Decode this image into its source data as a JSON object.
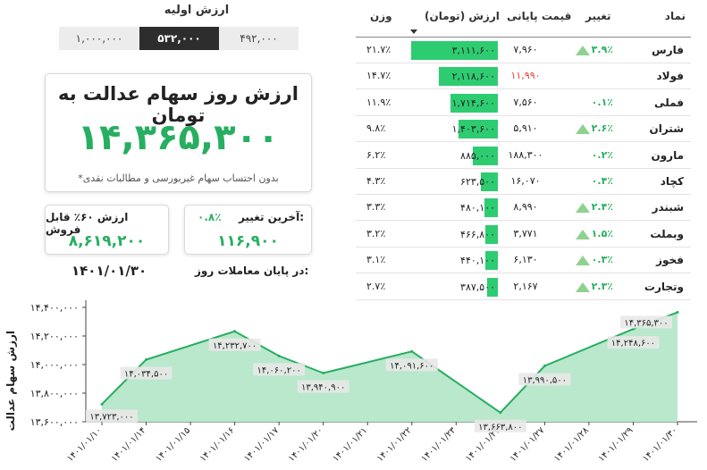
{
  "initial_value": {
    "title": "ارزش اولیه",
    "options": [
      "۱,۰۰۰,۰۰۰",
      "۵۳۲,۰۰۰",
      "۴۹۲,۰۰۰"
    ],
    "selected": "۵۳۲,۰۰۰"
  },
  "main_card": {
    "title": "ارزش روز سهام عدالت به تومان",
    "value": "۱۴,۳۶۵,۳۰۰",
    "note": "*بدون احتساب سهام غیربورسی و مطالبات نقدی"
  },
  "sell_card": {
    "label": "ارزش ۶۰٪ قابل فروش",
    "value": "۸,۶۱۹,۲۰۰"
  },
  "change_card": {
    "label": "آخرین تغییر:",
    "percent": "۰.۸٪",
    "value": "۱۱۶,۹۰۰"
  },
  "trading_day": {
    "label": "در پایان معاملات روز:",
    "date": "۱۴۰۱/۰۱/۳۰"
  },
  "table": {
    "headers": {
      "symbol": "نماد",
      "change": "تغییر",
      "price": "قیمت پایانی",
      "value": "ارزش (تومان)",
      "weight": "وزن"
    },
    "rows": [
      {
        "symbol": "فارس",
        "change": "۳.۹٪",
        "up": true,
        "price": "۷,۹۶۰",
        "price_red": false,
        "value": "۳,۱۱۱,۶۰۰",
        "bar": 1.0,
        "weight": "۲۱.۷٪"
      },
      {
        "symbol": "فولاد",
        "change": "",
        "up": false,
        "price": "۱۱,۹۹۰",
        "price_red": true,
        "value": "۲,۱۱۸,۶۰۰",
        "bar": 0.68,
        "weight": "۱۴.۷٪"
      },
      {
        "symbol": "فملی",
        "change": "۰.۱٪",
        "up": false,
        "price": "۷,۵۶۰",
        "price_red": false,
        "value": "۱,۷۱۴,۶۰۰",
        "bar": 0.55,
        "weight": "۱۱.۹٪"
      },
      {
        "symbol": "شتران",
        "change": "۲.۶٪",
        "up": true,
        "price": "۵,۹۱۰",
        "price_red": false,
        "value": "۱,۴۰۳,۶۰۰",
        "bar": 0.45,
        "weight": "۹.۸٪"
      },
      {
        "symbol": "مارون",
        "change": "۰.۲٪",
        "up": false,
        "price": "۱۸۸,۳۰۰",
        "price_red": false,
        "value": "۸۸۵,۰۰۰",
        "bar": 0.29,
        "weight": "۶.۲٪"
      },
      {
        "symbol": "کچاد",
        "change": "۰.۴٪",
        "up": false,
        "price": "۱۶,۰۷۰",
        "price_red": false,
        "value": "۶۲۳,۵۰۰",
        "bar": 0.2,
        "weight": "۴.۳٪"
      },
      {
        "symbol": "شبندر",
        "change": "۲.۴٪",
        "up": true,
        "price": "۸,۹۹۰",
        "price_red": false,
        "value": "۴۸۰,۱۰۰",
        "bar": 0.16,
        "weight": "۳.۳٪"
      },
      {
        "symbol": "وبملت",
        "change": "۱.۵٪",
        "up": true,
        "price": "۳,۷۷۱",
        "price_red": false,
        "value": "۴۶۶,۸۰۰",
        "bar": 0.15,
        "weight": "۳.۲٪"
      },
      {
        "symbol": "فخوز",
        "change": "۰.۳٪",
        "up": true,
        "price": "۶,۱۳۰",
        "price_red": false,
        "value": "۴۴۰,۱۰۰",
        "bar": 0.14,
        "weight": "۳.۱٪"
      },
      {
        "symbol": "وتجارت",
        "change": "۲.۳٪",
        "up": true,
        "price": "۲,۱۶۷",
        "price_red": false,
        "value": "۳۸۷,۵۰۰",
        "bar": 0.12,
        "weight": "۲.۷٪"
      }
    ]
  },
  "colors": {
    "accent": "#27ae60",
    "bar": "#2ecc71",
    "up_triangle": "#8fd18f",
    "negative": "#e53935",
    "area_fill": "#b9e8cc",
    "line": "#27ae60"
  },
  "chart_data": {
    "type": "area",
    "ylabel": "ارزش سهام عدالت",
    "ylim": [
      13600000,
      14400000
    ],
    "y_ticks": [
      "۱۳,۶۰۰,۰۰۰",
      "۱۳,۸۰۰,۰۰۰",
      "۱۴,۰۰۰,۰۰۰",
      "۱۴,۲۰۰,۰۰۰",
      "۱۴,۴۰۰,۰۰۰"
    ],
    "y_tick_values": [
      13600000,
      13800000,
      14000000,
      14200000,
      14400000
    ],
    "x_ticks": [
      "۱۴۰۱/۰۱/۱۰",
      "۱۴۰۱/۰۱/۱۴",
      "۱۴۰۱/۰۱/۱۵",
      "۱۴۰۱/۰۱/۱۶",
      "۱۴۰۱/۰۱/۱۷",
      "۱۴۰۱/۰۱/۲۰",
      "۱۴۰۱/۰۱/۲۱",
      "۱۴۰۱/۰۱/۲۲",
      "۱۴۰۱/۰۱/۲۳",
      "۱۴۰۱/۰۱/۲۴",
      "۱۴۰۱/۰۱/۲۷",
      "۱۴۰۱/۰۱/۲۸",
      "۱۴۰۱/۰۱/۲۹",
      "۱۴۰۱/۰۱/۳۰"
    ],
    "points": [
      {
        "x": "۱۴۰۱/۰۱/۱۰",
        "y": 13723000,
        "label": "۱۳,۷۲۳,۰۰۰"
      },
      {
        "x": "۱۴۰۱/۰۱/۱۴",
        "y": 14034500,
        "label": "۱۴,۰۳۴,۵۰۰"
      },
      {
        "x": "۱۴۰۱/۰۱/۱۶",
        "y": 14232700,
        "label": "۱۴,۲۳۲,۷۰۰"
      },
      {
        "x": "۱۴۰۱/۰۱/۱۷",
        "y": 14060200,
        "label": "۱۴,۰۶۰,۲۰۰"
      },
      {
        "x": "۱۴۰۱/۰۱/۲۰",
        "y": 13940900,
        "label": "۱۳,۹۴۰,۹۰۰"
      },
      {
        "x": "۱۴۰۱/۰۱/۲۲",
        "y": 14091600,
        "label": "۱۴,۰۹۱,۶۰۰"
      },
      {
        "x": "۱۴۰۱/۰۱/۲۴",
        "y": 13663800,
        "label": "۱۳,۶۶۳,۸۰۰"
      },
      {
        "x": "۱۴۰۱/۰۱/۲۷",
        "y": 13990500,
        "label": "۱۳,۹۹۰,۵۰۰"
      },
      {
        "x": "۱۴۰۱/۰۱/۲۹",
        "y": 14248600,
        "label": "۱۴,۲۴۸,۶۰۰"
      },
      {
        "x": "۱۴۰۱/۰۱/۳۰",
        "y": 14365300,
        "label": "۱۴,۳۶۵,۳۰۰"
      }
    ],
    "grid": false,
    "legend": "none"
  }
}
